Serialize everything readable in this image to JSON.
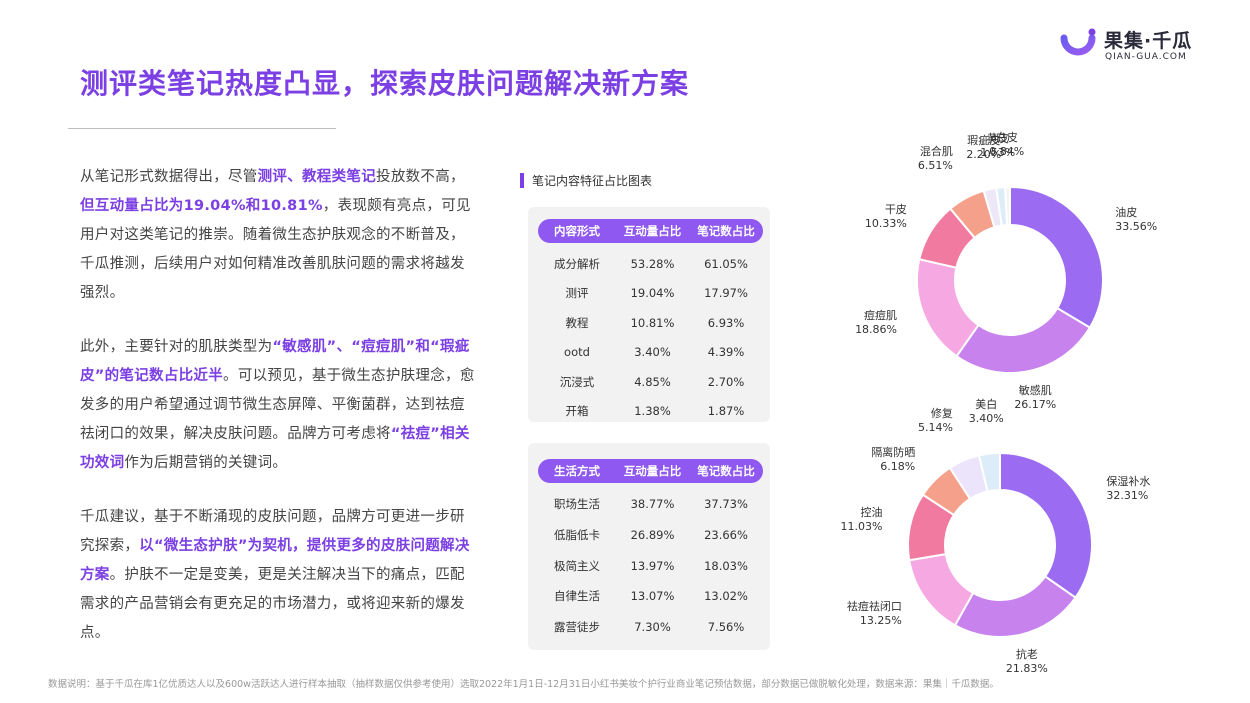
{
  "logo": {
    "name": "果集·千瓜",
    "sub": "QIAN-GUA.COM"
  },
  "title": "测评类笔记热度凸显，探索皮肤问题解决新方案",
  "paragraphs": {
    "p1": [
      {
        "t": "从笔记形式数据得出，尽管"
      },
      {
        "t": "测评、教程类笔记",
        "hl": true
      },
      {
        "t": "投放数不高，"
      },
      {
        "t": "但互动量占比为19.04%和10.81%",
        "hl": true
      },
      {
        "t": "，表现颇有亮点，可见用户对这类笔记的推崇。随着微生态护肤观念的不断普及，千瓜推测，后续用户对如何精准改善肌肤问题的需求将越发强烈。"
      }
    ],
    "p2": [
      {
        "t": "此外，主要针对的肌肤类型为"
      },
      {
        "t": "“敏感肌”、“痘痘肌”和“瑕疵皮”的笔记数占比近半",
        "hl": true
      },
      {
        "t": "。可以预见，基于微生态护肤理念，愈发多的用户希望通过调节微生态屏障、平衡菌群，达到祛痘祛闭口的效果，解决皮肤问题。品牌方可考虑将"
      },
      {
        "t": "“祛痘”相关功效词",
        "hl": true
      },
      {
        "t": "作为后期营销的关键词。"
      }
    ],
    "p3": [
      {
        "t": "千瓜建议，基于不断涌现的皮肤问题，品牌方可更进一步研究探索，"
      },
      {
        "t": "以“微生态护肤”为契机，提供更多的皮肤问题解决方案",
        "hl": true
      },
      {
        "t": "。护肤不一定是变美，更是关注解决当下的痛点，匹配需求的产品营销会有更充足的市场潜力，或将迎来新的爆发点。"
      }
    ]
  },
  "table_title": "笔记内容特征占比图表",
  "footer": "数据说明：基于千瓜在库1亿优质达人以及600w活跃达人进行样本抽取（抽样数据仅供参考使用）选取2022年1月1日-12月31日小红书美妆个护行业商业笔记预估数据，部分数据已做脱敏化处理，数据来源：果集｜千瓜数据。",
  "colors": {
    "accent": "#7b3fe4",
    "header": "#8f58f0"
  },
  "chart_data": [
    {
      "type": "table",
      "columns": [
        "内容形式",
        "互动量占比",
        "笔记数占比"
      ],
      "rows": [
        [
          "成分解析",
          "53.28%",
          "61.05%"
        ],
        [
          "测评",
          "19.04%",
          "17.97%"
        ],
        [
          "教程",
          "10.81%",
          "6.93%"
        ],
        [
          "ootd",
          "3.40%",
          "4.39%"
        ],
        [
          "沉浸式",
          "4.85%",
          "2.70%"
        ],
        [
          "开箱",
          "1.38%",
          "1.87%"
        ]
      ]
    },
    {
      "type": "table",
      "columns": [
        "生活方式",
        "互动量占比",
        "笔记数占比"
      ],
      "rows": [
        [
          "职场生活",
          "38.77%",
          "37.73%"
        ],
        [
          "低脂低卡",
          "26.89%",
          "23.66%"
        ],
        [
          "极简主义",
          "13.97%",
          "18.03%"
        ],
        [
          "自律生活",
          "13.07%",
          "13.02%"
        ],
        [
          "露营徒步",
          "7.30%",
          "7.56%"
        ]
      ]
    },
    {
      "type": "pie",
      "donut": true,
      "slices": [
        {
          "label": "油皮",
          "value": 33.56,
          "text": "33.56%",
          "color": "#9b6cf2"
        },
        {
          "label": "敏感肌",
          "value": 26.17,
          "text": "26.17%",
          "color": "#c782ee"
        },
        {
          "label": "痘痘肌",
          "value": 18.86,
          "text": "18.86%",
          "color": "#f5a8e2"
        },
        {
          "label": "干皮",
          "value": 10.33,
          "text": "10.33%",
          "color": "#f07aa0"
        },
        {
          "label": "混合肌",
          "value": 6.51,
          "text": "6.51%",
          "color": "#f5a08a"
        },
        {
          "label": "瑕疵皮",
          "value": 2.2,
          "text": "2.20%",
          "color": "#ece8f8"
        },
        {
          "label": "黄皮",
          "value": 1.53,
          "text": "1.53%",
          "color": "#dcecf9"
        },
        {
          "label": "白皮",
          "value": 0.84,
          "text": "0.84%",
          "color": "#f4f4f4"
        }
      ]
    },
    {
      "type": "pie",
      "donut": true,
      "slices": [
        {
          "label": "保湿补水",
          "value": 32.31,
          "text": "32.31%",
          "color": "#9b6cf2"
        },
        {
          "label": "抗老",
          "value": 21.83,
          "text": "21.83%",
          "color": "#c782ee"
        },
        {
          "label": "祛痘祛闭口",
          "value": 13.25,
          "text": "13.25%",
          "color": "#f5a8e2"
        },
        {
          "label": "控油",
          "value": 11.03,
          "text": "11.03%",
          "color": "#f07aa0"
        },
        {
          "label": "隔离防晒",
          "value": 6.18,
          "text": "6.18%",
          "color": "#f5a08a"
        },
        {
          "label": "修复",
          "value": 5.14,
          "text": "5.14%",
          "color": "#ebe4fb"
        },
        {
          "label": "美白",
          "value": 3.4,
          "text": "3.40%",
          "color": "#dcecf9"
        }
      ]
    }
  ]
}
